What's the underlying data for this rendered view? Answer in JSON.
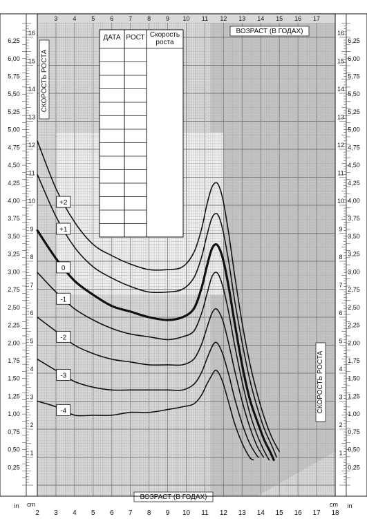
{
  "chart_data": {
    "type": "line",
    "title": "",
    "xlabel_top": "ВОЗРАСТ (В ГОДАХ)",
    "xlabel_bottom": "ВОЗРАСТ (В ГОДАХ)",
    "ylabel_left": "СКОРОСТЬ РОСТА",
    "ylabel_right": "СКОРОСТЬ РОСТА",
    "unit_in": "in",
    "unit_cm": "cm",
    "x_range": [
      2,
      18
    ],
    "x_ticks_bottom": [
      "2",
      "3",
      "4",
      "5",
      "6",
      "7",
      "8",
      "9",
      "10",
      "11",
      "12",
      "13",
      "14",
      "15",
      "16",
      "17",
      "18"
    ],
    "x_ticks_top": [
      "3",
      "4",
      "5",
      "6",
      "7",
      "8",
      "9",
      "10",
      "11",
      "12",
      "13",
      "14",
      "15",
      "16",
      "17"
    ],
    "cm_range": [
      0,
      16.5
    ],
    "cm_ticks": [
      "1",
      "2",
      "3",
      "4",
      "5",
      "6",
      "7",
      "8",
      "9",
      "10",
      "11",
      "12",
      "13",
      "14",
      "15",
      "16"
    ],
    "in_range": [
      0,
      6.5
    ],
    "in_ticks": [
      "0,25",
      "0,50",
      "0,75",
      "1,00",
      "1,25",
      "1,50",
      "1,75",
      "2,00",
      "2,25",
      "2,50",
      "2,75",
      "3,00",
      "3,25",
      "3,50",
      "3,75",
      "4,00",
      "4,25",
      "4,50",
      "4,75",
      "5,00",
      "5,25",
      "5,50",
      "5,75",
      "6,00",
      "6,25"
    ],
    "grid": true,
    "table": {
      "headers": [
        "ДАТА",
        "РОСТ",
        "Скорость роста"
      ],
      "rows": 14
    },
    "series": [
      {
        "name": "+2",
        "bold": false,
        "label_x": 3.4,
        "x": [
          2.0,
          3,
          4,
          5,
          6,
          7,
          8,
          9,
          9.8,
          10.4,
          10.8,
          11.1,
          11.35,
          11.55,
          11.75,
          12.0,
          12.3,
          12.6,
          13.0,
          13.4,
          13.8,
          14.2,
          14.6,
          15.0
        ],
        "y": [
          12.3,
          10.6,
          9.4,
          8.6,
          8.2,
          7.9,
          7.7,
          7.7,
          7.8,
          8.3,
          9.1,
          10.0,
          10.6,
          10.8,
          10.7,
          10.1,
          8.9,
          7.5,
          5.8,
          4.4,
          3.3,
          2.4,
          1.7,
          1.2
        ]
      },
      {
        "name": "+1",
        "bold": false,
        "label_x": 3.4,
        "x": [
          2.0,
          3,
          4,
          5,
          6,
          7,
          8,
          9,
          9.8,
          10.4,
          10.8,
          11.1,
          11.35,
          11.55,
          11.75,
          12.0,
          12.3,
          12.6,
          13.0,
          13.4,
          13.8,
          14.2,
          14.6,
          14.85
        ],
        "y": [
          11.1,
          9.6,
          8.5,
          7.8,
          7.4,
          7.1,
          6.9,
          6.9,
          7.0,
          7.4,
          8.1,
          8.9,
          9.5,
          9.7,
          9.6,
          9.0,
          7.9,
          6.6,
          5.1,
          3.8,
          2.8,
          2.0,
          1.4,
          1.0
        ]
      },
      {
        "name": "0",
        "bold": true,
        "label_x": 3.4,
        "x": [
          2.0,
          3,
          4,
          5,
          6,
          7,
          8,
          9,
          9.8,
          10.4,
          10.8,
          11.1,
          11.35,
          11.55,
          11.75,
          12.0,
          12.3,
          12.6,
          13.0,
          13.4,
          13.8,
          14.2,
          14.5,
          14.7
        ],
        "y": [
          9.1,
          8.1,
          7.3,
          6.8,
          6.4,
          6.2,
          6.0,
          5.9,
          6.0,
          6.3,
          7.0,
          7.8,
          8.4,
          8.6,
          8.5,
          8.0,
          7.0,
          5.8,
          4.3,
          3.1,
          2.3,
          1.6,
          1.2,
          0.9
        ]
      },
      {
        "name": "-1",
        "bold": false,
        "label_x": 3.4,
        "x": [
          2.0,
          3,
          4,
          5,
          6,
          7,
          8,
          9,
          9.8,
          10.4,
          10.8,
          11.1,
          11.35,
          11.55,
          11.75,
          12.0,
          12.3,
          12.6,
          13.0,
          13.4,
          13.8,
          14.2,
          14.45
        ],
        "y": [
          7.6,
          6.9,
          6.3,
          5.9,
          5.6,
          5.4,
          5.3,
          5.2,
          5.3,
          5.5,
          6.1,
          6.8,
          7.4,
          7.6,
          7.5,
          7.0,
          6.1,
          5.0,
          3.7,
          2.6,
          1.8,
          1.2,
          0.9
        ]
      },
      {
        "name": "-2",
        "bold": false,
        "label_x": 3.4,
        "x": [
          2.0,
          3,
          4,
          5,
          6,
          7,
          8,
          9,
          9.8,
          10.4,
          10.8,
          11.1,
          11.35,
          11.55,
          11.75,
          12.0,
          12.3,
          12.6,
          13.0,
          13.4,
          13.8,
          14.15
        ],
        "y": [
          6.0,
          5.5,
          5.0,
          4.7,
          4.5,
          4.4,
          4.3,
          4.3,
          4.3,
          4.5,
          5.0,
          5.6,
          6.1,
          6.3,
          6.2,
          5.8,
          5.0,
          4.1,
          3.0,
          2.1,
          1.4,
          1.0
        ]
      },
      {
        "name": "-3",
        "bold": false,
        "label_x": 3.4,
        "x": [
          2.0,
          3,
          4,
          5,
          6,
          7,
          8,
          9,
          9.8,
          10.4,
          10.8,
          11.1,
          11.35,
          11.55,
          11.75,
          12.0,
          12.3,
          12.6,
          13.0,
          13.4,
          13.8,
          13.9
        ],
        "y": [
          4.5,
          4.1,
          3.7,
          3.5,
          3.4,
          3.4,
          3.4,
          3.4,
          3.4,
          3.6,
          4.0,
          4.5,
          4.9,
          5.1,
          5.0,
          4.6,
          3.9,
          3.1,
          2.2,
          1.5,
          1.05,
          1.0
        ]
      },
      {
        "name": "-4",
        "bold": false,
        "label_x": 3.4,
        "x": [
          2.0,
          3,
          4,
          5,
          6,
          7,
          8,
          9,
          9.8,
          10.4,
          10.8,
          11.1,
          11.35,
          11.55,
          11.75,
          12.0,
          12.3,
          12.6,
          13.0,
          13.4,
          13.6
        ],
        "y": [
          3.0,
          2.8,
          2.5,
          2.5,
          2.5,
          2.6,
          2.6,
          2.7,
          2.8,
          2.9,
          3.2,
          3.6,
          3.9,
          4.1,
          4.0,
          3.6,
          2.9,
          2.2,
          1.5,
          1.0,
          0.9
        ]
      }
    ]
  }
}
